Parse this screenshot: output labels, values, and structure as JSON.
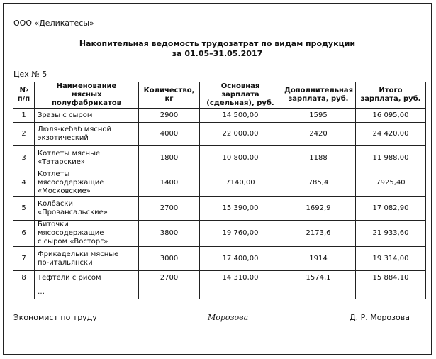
{
  "header": {
    "company": "ООО «Деликатесы»",
    "title": [
      "Накопительная ведомость трудозатрат по видам продукции",
      "за 01.05–31.05.2017"
    ],
    "workshop": "Цех № 5"
  },
  "table": {
    "header": [
      "№\nп/п",
      "Наименование\nмясных полуфабрикатов",
      "Количество,\nкг",
      "Основная зарплата\n(сдельная), руб.",
      "Дополнительная\nзарплата, руб.",
      "Итого\nзарплата, руб."
    ],
    "rows": [
      [
        "1",
        "Зразы с сыром",
        "2900",
        "14 500,00",
        "1595",
        "16 095,00"
      ],
      [
        "2",
        "Люля-кебаб мясной\nэкзотический",
        "4000",
        "22 000,00",
        "2420",
        "24 420,00"
      ],
      [
        "3",
        "Котлеты мясные\n«Татарские»",
        "1800",
        "10 800,00",
        "1188",
        "11 988,00"
      ],
      [
        "4",
        "Котлеты мясосодержащие\n«Московские»",
        "1400",
        "7140,00",
        "785,4",
        "7925,40"
      ],
      [
        "5",
        "Колбаски\n«Провансальские»",
        "2700",
        "15 390,00",
        "1692,9",
        "17 082,90"
      ],
      [
        "6",
        "Биточки мясосодержащие\nс сыром «Восторг»",
        "3800",
        "19 760,00",
        "2173,6",
        "21 933,60"
      ],
      [
        "7",
        "Фрикадельки мясные\nпо-итальянски",
        "3000",
        "17 400,00",
        "1914",
        "19 314,00"
      ],
      [
        "8",
        "Тефтели с рисом",
        "2700",
        "14 310,00",
        "1574,1",
        "15 884,10"
      ]
    ],
    "continuation": "…"
  },
  "footer": {
    "position": "Экономист по труду",
    "signature": "Морозова",
    "name": "Д. Р. Морозова"
  }
}
